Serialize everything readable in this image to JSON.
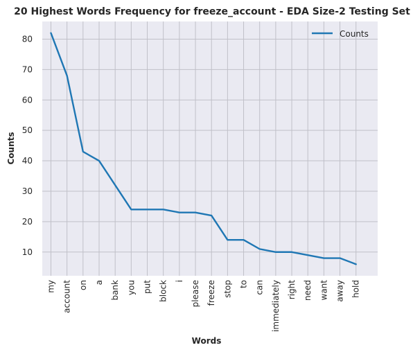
{
  "chart_data": {
    "type": "line",
    "title": "20 Highest Words Frequency for freeze_account - EDA Size-2 Testing Set",
    "xlabel": "Words",
    "ylabel": "Counts",
    "categories": [
      "my",
      "account",
      "on",
      "a",
      "bank",
      "you",
      "put",
      "block",
      "i",
      "please",
      "freeze",
      "stop",
      "to",
      "can",
      "immediately",
      "right",
      "need",
      "want",
      "away",
      "hold"
    ],
    "series": [
      {
        "name": "Counts",
        "values": [
          82,
          68,
          43,
          40,
          32,
          24,
          24,
          24,
          23,
          23,
          22,
          14,
          14,
          11,
          10,
          10,
          9,
          8,
          8,
          6
        ]
      }
    ],
    "ylim": [
      2.2,
      85.8
    ],
    "yticks": [
      "10",
      "20",
      "30",
      "40",
      "50",
      "60",
      "70",
      "80"
    ],
    "grid": true,
    "legend": "top-right",
    "colors": {
      "line": "#1f77b4",
      "background": "#eaeaf2",
      "grid": "#c0c0c8"
    }
  }
}
